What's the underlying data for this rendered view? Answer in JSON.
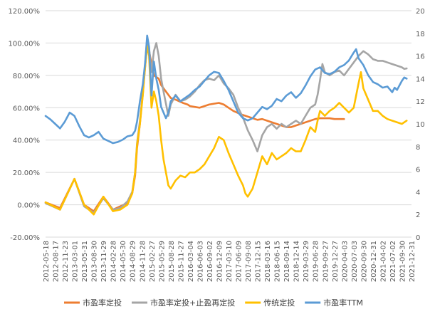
{
  "chart_data": {
    "type": "line",
    "title": "",
    "xlabel": "",
    "ylabel": "",
    "y_left": {
      "min": -0.2,
      "max": 1.2,
      "step": 0.2,
      "tick_labels": [
        "-20.00%",
        "0.00%",
        "20.00%",
        "40.00%",
        "60.00%",
        "80.00%",
        "100.00%",
        "120.00%"
      ]
    },
    "y_right": {
      "min": 0,
      "max": 20,
      "step": 2,
      "tick_labels": [
        "0",
        "2",
        "4",
        "6",
        "8",
        "10",
        "12",
        "14",
        "16",
        "18",
        "20"
      ]
    },
    "x_tick_labels": [
      "2012-05-18",
      "2012-08-17",
      "2012-11-23",
      "2013-03-01",
      "2013-05-31",
      "2013-08-30",
      "2013-11-29",
      "2014-02-28",
      "2014-05-30",
      "2014-08-29",
      "2014-11-28",
      "2015-02-27",
      "2015-05-29",
      "2015-08-28",
      "2015-11-27",
      "2016-03-04",
      "2016-06-03",
      "2016-09-02",
      "2016-12-09",
      "2017-03-10",
      "2017-06-09",
      "2017-09-08",
      "2017-12-15",
      "2018-03-16",
      "2018-06-15",
      "2018-09-14",
      "2018-12-14",
      "2019-03-29",
      "2019-06-28",
      "2019-09-27",
      "2019-12-27",
      "2020-04-03",
      "2020-07-03",
      "2020-09-30",
      "2020-12-31",
      "2021-04-02",
      "2021-07-02",
      "2021-09-30",
      "2021-12-31"
    ],
    "legend_position": "bottom",
    "grid": "horizontal",
    "series": [
      {
        "name": "市盈率定投",
        "axis": "left",
        "color": "#ed7d31",
        "points": [
          [
            0,
            0.015
          ],
          [
            3,
            -0.02
          ],
          [
            6,
            0.16
          ],
          [
            8,
            0.0
          ],
          [
            10,
            -0.04
          ],
          [
            12,
            0.05
          ],
          [
            14,
            -0.03
          ],
          [
            15.5,
            -0.01
          ],
          [
            17,
            0.01
          ],
          [
            18,
            0.07
          ],
          [
            18.6,
            0.18
          ],
          [
            19,
            0.35
          ],
          [
            19.6,
            0.5
          ],
          [
            20.2,
            0.7
          ],
          [
            20.7,
            0.86
          ],
          [
            21.1,
            1.0
          ],
          [
            21.5,
            0.95
          ],
          [
            22.5,
            0.8
          ],
          [
            23.5,
            0.78
          ],
          [
            24,
            0.74
          ],
          [
            25,
            0.7
          ],
          [
            26,
            0.66
          ],
          [
            27,
            0.65
          ],
          [
            28.5,
            0.63
          ],
          [
            29.5,
            0.62
          ],
          [
            30,
            0.61
          ],
          [
            32,
            0.6
          ],
          [
            33,
            0.61
          ],
          [
            34,
            0.62
          ],
          [
            36,
            0.63
          ],
          [
            37,
            0.62
          ],
          [
            38,
            0.6
          ],
          [
            39,
            0.58
          ],
          [
            40.5,
            0.56
          ],
          [
            41.5,
            0.55
          ],
          [
            42.5,
            0.54
          ],
          [
            43.5,
            0.53
          ],
          [
            44,
            0.525
          ],
          [
            45,
            0.53
          ],
          [
            46,
            0.52
          ],
          [
            47,
            0.51
          ],
          [
            48,
            0.5
          ],
          [
            49,
            0.49
          ],
          [
            50,
            0.48
          ],
          [
            51,
            0.48
          ],
          [
            52,
            0.49
          ],
          [
            53,
            0.5
          ],
          [
            54,
            0.51
          ],
          [
            55,
            0.52
          ],
          [
            56,
            0.53
          ],
          [
            57,
            0.535
          ],
          [
            58,
            0.535
          ],
          [
            59,
            0.535
          ],
          [
            60,
            0.53
          ],
          [
            61,
            0.53
          ],
          [
            62,
            0.53
          ]
        ]
      },
      {
        "name": "市盈率定投+止盈再定投",
        "axis": "left",
        "color": "#a5a5a5",
        "points": [
          [
            0,
            0.01
          ],
          [
            3,
            -0.03
          ],
          [
            6,
            0.16
          ],
          [
            8,
            -0.01
          ],
          [
            10,
            -0.05
          ],
          [
            12,
            0.04
          ],
          [
            14,
            -0.03
          ],
          [
            15.5,
            -0.02
          ],
          [
            17,
            0.02
          ],
          [
            18,
            0.08
          ],
          [
            18.6,
            0.2
          ],
          [
            19,
            0.38
          ],
          [
            19.6,
            0.52
          ],
          [
            20.2,
            0.68
          ],
          [
            20.7,
            0.88
          ],
          [
            21.1,
            1.03
          ],
          [
            21.5,
            0.97
          ],
          [
            22,
            0.82
          ],
          [
            22.5,
            0.95
          ],
          [
            23,
            1.0
          ],
          [
            23.5,
            0.92
          ],
          [
            24,
            0.78
          ],
          [
            24.5,
            0.7
          ],
          [
            25.5,
            0.55
          ],
          [
            26,
            0.62
          ],
          [
            27,
            0.68
          ],
          [
            28,
            0.64
          ],
          [
            29,
            0.65
          ],
          [
            30,
            0.67
          ],
          [
            31,
            0.7
          ],
          [
            32,
            0.74
          ],
          [
            33,
            0.77
          ],
          [
            34,
            0.78
          ],
          [
            35,
            0.77
          ],
          [
            36,
            0.8
          ],
          [
            37,
            0.75
          ],
          [
            38,
            0.72
          ],
          [
            39,
            0.68
          ],
          [
            40,
            0.6
          ],
          [
            41,
            0.54
          ],
          [
            42,
            0.46
          ],
          [
            43,
            0.4
          ],
          [
            44,
            0.33
          ],
          [
            45,
            0.43
          ],
          [
            46,
            0.48
          ],
          [
            47,
            0.5
          ],
          [
            48,
            0.47
          ],
          [
            49,
            0.5
          ],
          [
            50,
            0.48
          ],
          [
            51,
            0.5
          ],
          [
            52,
            0.52
          ],
          [
            53,
            0.5
          ],
          [
            54,
            0.55
          ],
          [
            55,
            0.6
          ],
          [
            56,
            0.62
          ],
          [
            56.5,
            0.68
          ],
          [
            57,
            0.77
          ],
          [
            57.5,
            0.87
          ],
          [
            58,
            0.82
          ],
          [
            59,
            0.8
          ],
          [
            60,
            0.82
          ],
          [
            61,
            0.83
          ],
          [
            62,
            0.8
          ],
          [
            63,
            0.84
          ],
          [
            64,
            0.88
          ],
          [
            65,
            0.92
          ],
          [
            66,
            0.95
          ],
          [
            67,
            0.93
          ],
          [
            68,
            0.9
          ],
          [
            69,
            0.89
          ],
          [
            70,
            0.89
          ],
          [
            71,
            0.88
          ],
          [
            72,
            0.87
          ],
          [
            73,
            0.86
          ],
          [
            74,
            0.85
          ],
          [
            74.5,
            0.84
          ],
          [
            75,
            0.843
          ]
        ]
      },
      {
        "name": "传统定投",
        "axis": "left",
        "color": "#ffc000",
        "points": [
          [
            0,
            0.015
          ],
          [
            3,
            -0.03
          ],
          [
            6,
            0.16
          ],
          [
            8,
            0.0
          ],
          [
            10,
            -0.06
          ],
          [
            12,
            0.05
          ],
          [
            14,
            -0.04
          ],
          [
            15.5,
            -0.03
          ],
          [
            17,
            0.0
          ],
          [
            18,
            0.07
          ],
          [
            18.6,
            0.2
          ],
          [
            19,
            0.37
          ],
          [
            19.6,
            0.5
          ],
          [
            20.2,
            0.68
          ],
          [
            20.7,
            0.86
          ],
          [
            21.1,
            0.98
          ],
          [
            21.5,
            0.92
          ],
          [
            22,
            0.6
          ],
          [
            22.5,
            0.7
          ],
          [
            23,
            0.64
          ],
          [
            23.5,
            0.55
          ],
          [
            24,
            0.4
          ],
          [
            24.5,
            0.28
          ],
          [
            25,
            0.2
          ],
          [
            25.5,
            0.12
          ],
          [
            26,
            0.1
          ],
          [
            27,
            0.15
          ],
          [
            28,
            0.18
          ],
          [
            29,
            0.17
          ],
          [
            30,
            0.2
          ],
          [
            31,
            0.2
          ],
          [
            32,
            0.22
          ],
          [
            33,
            0.25
          ],
          [
            34,
            0.3
          ],
          [
            35,
            0.35
          ],
          [
            36,
            0.42
          ],
          [
            37,
            0.4
          ],
          [
            38,
            0.32
          ],
          [
            39,
            0.25
          ],
          [
            40,
            0.18
          ],
          [
            41,
            0.12
          ],
          [
            41.5,
            0.07
          ],
          [
            42,
            0.05
          ],
          [
            43,
            0.1
          ],
          [
            44,
            0.2
          ],
          [
            45,
            0.3
          ],
          [
            46,
            0.25
          ],
          [
            47,
            0.32
          ],
          [
            48,
            0.28
          ],
          [
            49,
            0.3
          ],
          [
            50,
            0.32
          ],
          [
            51,
            0.35
          ],
          [
            52,
            0.33
          ],
          [
            53,
            0.33
          ],
          [
            54,
            0.4
          ],
          [
            55,
            0.48
          ],
          [
            56,
            0.45
          ],
          [
            56.5,
            0.52
          ],
          [
            57,
            0.58
          ],
          [
            58,
            0.55
          ],
          [
            59,
            0.58
          ],
          [
            60,
            0.6
          ],
          [
            61,
            0.63
          ],
          [
            62,
            0.6
          ],
          [
            63,
            0.57
          ],
          [
            64,
            0.6
          ],
          [
            65,
            0.75
          ],
          [
            65.5,
            0.82
          ],
          [
            66,
            0.72
          ],
          [
            67,
            0.65
          ],
          [
            68,
            0.58
          ],
          [
            69,
            0.58
          ],
          [
            70,
            0.55
          ],
          [
            71,
            0.53
          ],
          [
            72,
            0.52
          ],
          [
            73,
            0.51
          ],
          [
            74,
            0.5
          ],
          [
            75,
            0.52
          ]
        ]
      },
      {
        "name": "市盈率TTM",
        "axis": "right",
        "color": "#5b9bd5",
        "points": [
          [
            0,
            10.7
          ],
          [
            1,
            10.4
          ],
          [
            2,
            10.0
          ],
          [
            3,
            9.6
          ],
          [
            4,
            10.2
          ],
          [
            5,
            11.0
          ],
          [
            6,
            10.7
          ],
          [
            7,
            9.8
          ],
          [
            8,
            9.0
          ],
          [
            9,
            8.8
          ],
          [
            10,
            9.0
          ],
          [
            11,
            9.3
          ],
          [
            12,
            8.7
          ],
          [
            13,
            8.5
          ],
          [
            14,
            8.3
          ],
          [
            15,
            8.4
          ],
          [
            16,
            8.6
          ],
          [
            17,
            8.9
          ],
          [
            18,
            9.0
          ],
          [
            18.6,
            9.4
          ],
          [
            19,
            10.2
          ],
          [
            19.6,
            12.0
          ],
          [
            20.2,
            13.5
          ],
          [
            20.7,
            15.5
          ],
          [
            21.1,
            17.8
          ],
          [
            21.5,
            16.8
          ],
          [
            22,
            12.5
          ],
          [
            22.5,
            15.5
          ],
          [
            23,
            14.0
          ],
          [
            23.5,
            13.0
          ],
          [
            24,
            11.5
          ],
          [
            24.5,
            11.0
          ],
          [
            25,
            10.5
          ],
          [
            25.5,
            11.0
          ],
          [
            26,
            12.0
          ],
          [
            27,
            12.5
          ],
          [
            28,
            12.0
          ],
          [
            29,
            12.3
          ],
          [
            30,
            12.6
          ],
          [
            31,
            13.0
          ],
          [
            32,
            13.3
          ],
          [
            33,
            13.8
          ],
          [
            34,
            14.3
          ],
          [
            35,
            14.6
          ],
          [
            36,
            14.5
          ],
          [
            37,
            13.8
          ],
          [
            38,
            13.0
          ],
          [
            39,
            12.0
          ],
          [
            40,
            11.0
          ],
          [
            41,
            10.5
          ],
          [
            42,
            10.3
          ],
          [
            43,
            10.5
          ],
          [
            44,
            11.0
          ],
          [
            45,
            11.5
          ],
          [
            46,
            11.3
          ],
          [
            47,
            11.6
          ],
          [
            48,
            12.2
          ],
          [
            49,
            12.0
          ],
          [
            50,
            12.5
          ],
          [
            51,
            12.8
          ],
          [
            52,
            12.3
          ],
          [
            53,
            12.7
          ],
          [
            54,
            13.4
          ],
          [
            55,
            14.2
          ],
          [
            56,
            14.8
          ],
          [
            57,
            15.0
          ],
          [
            58,
            14.5
          ],
          [
            59,
            14.4
          ],
          [
            60,
            14.6
          ],
          [
            61,
            15.0
          ],
          [
            62,
            15.2
          ],
          [
            63,
            15.6
          ],
          [
            64,
            16.3
          ],
          [
            64.5,
            16.6
          ],
          [
            65,
            15.8
          ],
          [
            66,
            15.2
          ],
          [
            67,
            14.3
          ],
          [
            68,
            13.7
          ],
          [
            69,
            13.5
          ],
          [
            70,
            13.2
          ],
          [
            71,
            13.3
          ],
          [
            72,
            12.8
          ],
          [
            72.5,
            13.2
          ],
          [
            73,
            13.0
          ],
          [
            74,
            13.8
          ],
          [
            74.5,
            14.1
          ],
          [
            75,
            14.0
          ]
        ]
      }
    ]
  }
}
